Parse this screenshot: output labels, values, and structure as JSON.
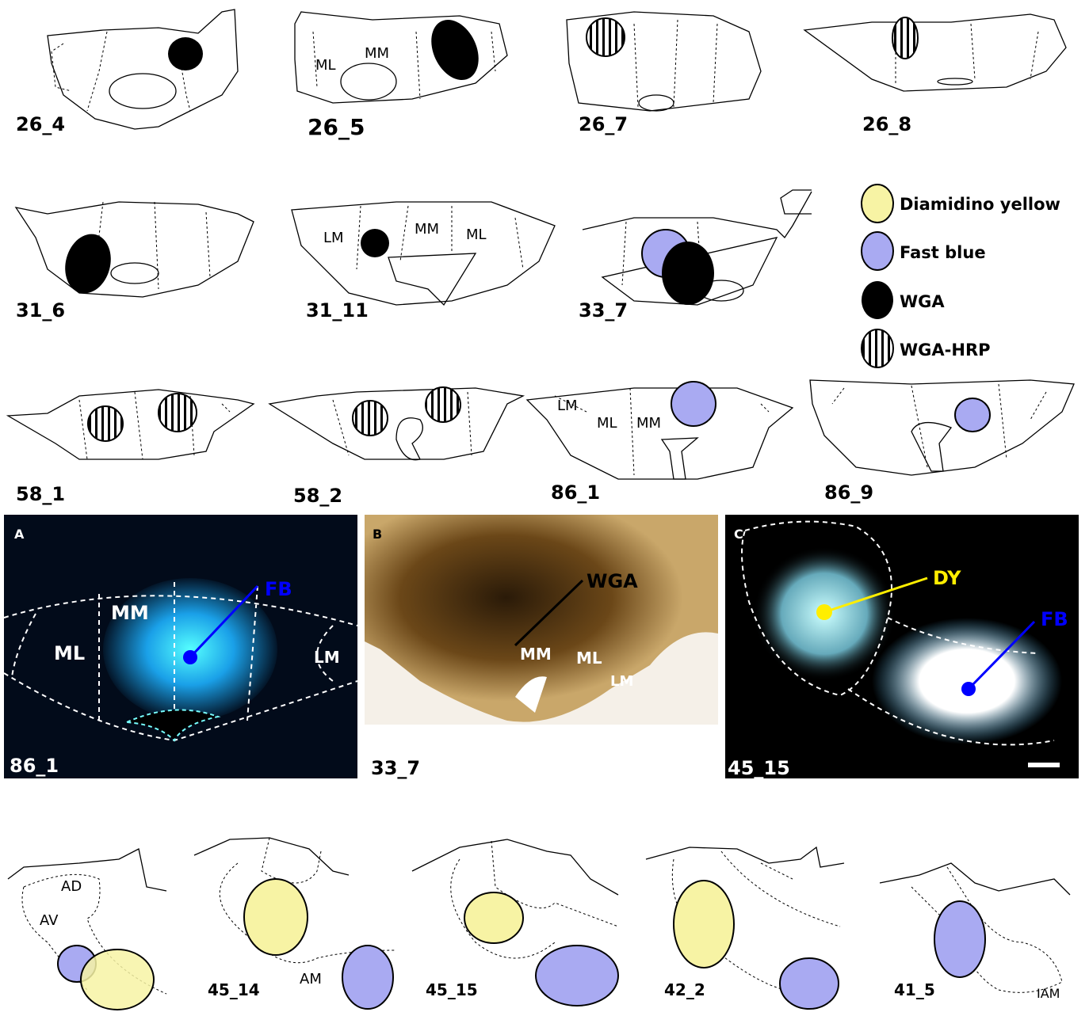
{
  "sections": [
    {
      "label": "26_4",
      "regions": []
    },
    {
      "label": "26_5",
      "regions": [
        "ML",
        "MM"
      ]
    },
    {
      "label": "26_7",
      "regions": []
    },
    {
      "label": "26_8",
      "regions": []
    },
    {
      "label": "31_6",
      "regions": []
    },
    {
      "label": "31_11",
      "regions": [
        "LM",
        "MM",
        "ML"
      ]
    },
    {
      "label": "33_7",
      "regions": []
    },
    {
      "label": "58_1",
      "regions": []
    },
    {
      "label": "58_2",
      "regions": []
    },
    {
      "label": "86_1",
      "regions": [
        "LM",
        "ML",
        "MM"
      ]
    },
    {
      "label": "86_9",
      "regions": []
    }
  ],
  "legend": [
    "Diamidino yellow",
    "Fast blue",
    "WGA",
    "WGA-HRP"
  ],
  "photos": [
    {
      "panel": "A",
      "section": "86_1",
      "labels": [
        "MM",
        "ML",
        "LM",
        "FB"
      ]
    },
    {
      "panel": "B",
      "section": "33_7",
      "labels": [
        "WGA",
        "MM",
        "ML",
        "LM"
      ]
    },
    {
      "panel": "C",
      "section": "45_15",
      "labels": [
        "DY",
        "FB"
      ]
    }
  ],
  "thalamus": {
    "regions": [
      "AD",
      "AV",
      "AM",
      "IAM"
    ],
    "sections": [
      "45_14",
      "45_15",
      "42_2",
      "41_5"
    ]
  }
}
